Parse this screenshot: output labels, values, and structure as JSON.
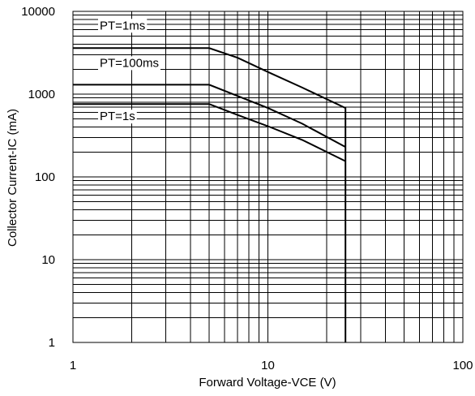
{
  "chart_data": {
    "type": "line",
    "title": "",
    "xlabel": "Forward Voltage-VCE (V)",
    "ylabel": "Collector Current-IC (mA)",
    "xscale": "log",
    "yscale": "log",
    "xlim": [
      1,
      100
    ],
    "ylim": [
      1,
      10000
    ],
    "grid": true,
    "x_ticks": [
      "1",
      "10",
      "100"
    ],
    "y_ticks": [
      "1",
      "10",
      "100",
      "1000",
      "10000"
    ],
    "series": [
      {
        "name": "PT=1ms",
        "x": [
          1,
          5,
          7,
          10,
          15,
          25,
          25
        ],
        "y": [
          3600,
          3600,
          2750,
          1850,
          1200,
          680,
          1
        ]
      },
      {
        "name": "PT=100ms",
        "x": [
          1,
          5,
          7,
          10,
          15,
          25
        ],
        "y": [
          1300,
          1300,
          950,
          680,
          440,
          230
        ]
      },
      {
        "name": "PT=1s",
        "x": [
          1,
          5,
          7,
          10,
          15,
          25
        ],
        "y": [
          760,
          760,
          560,
          410,
          280,
          155
        ]
      }
    ]
  }
}
